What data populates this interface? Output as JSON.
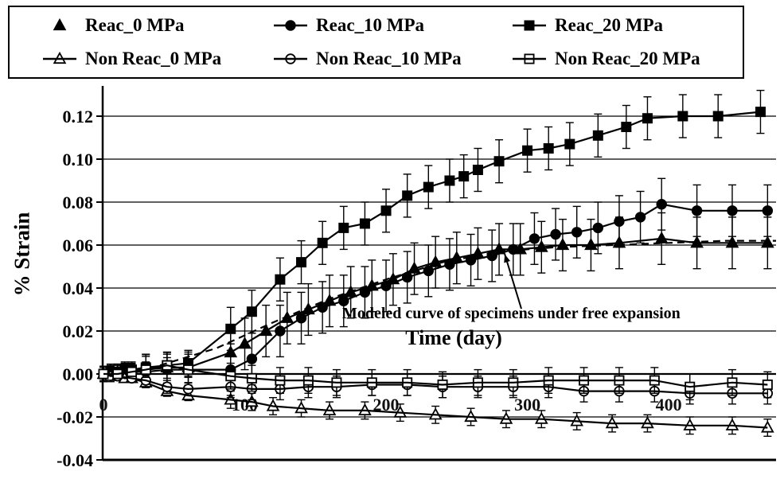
{
  "figure": {
    "ylabel": "% Strain",
    "xlabel": "Time (day)",
    "annotation_text": "Modeled curve of specimens under free expansion"
  },
  "chart_data": {
    "type": "line",
    "title": "",
    "xlabel": "Time (day)",
    "ylabel": "% Strain",
    "xlim": [
      0,
      476
    ],
    "ylim": [
      -0.04,
      0.13
    ],
    "x_ticks": [
      0,
      100,
      200,
      300,
      400
    ],
    "y_ticks": [
      -0.04,
      -0.02,
      0.0,
      0.02,
      0.04,
      0.06,
      0.08,
      0.1,
      0.12
    ],
    "grid": "horizontal",
    "legend_position": "top",
    "annotation": {
      "text": "Modeled curve of specimens under free expansion",
      "arrow_tip_day": 284,
      "arrow_tip_value": 0.058
    },
    "series": [
      {
        "name": "Reac_0 MPa",
        "marker": "triangle",
        "fill": "filled",
        "legend_line": false,
        "error_bar": 0.012,
        "points": [
          [
            0,
            0.0
          ],
          [
            5,
            0.001
          ],
          [
            10,
            0.001
          ],
          [
            15,
            0.002
          ],
          [
            20,
            0.002
          ],
          [
            30,
            0.002
          ],
          [
            45,
            0.003
          ],
          [
            60,
            0.003
          ],
          [
            90,
            0.01
          ],
          [
            100,
            0.014
          ],
          [
            115,
            0.02
          ],
          [
            130,
            0.026
          ],
          [
            145,
            0.03
          ],
          [
            160,
            0.034
          ],
          [
            175,
            0.038
          ],
          [
            190,
            0.041
          ],
          [
            205,
            0.044
          ],
          [
            220,
            0.049
          ],
          [
            235,
            0.052
          ],
          [
            250,
            0.054
          ],
          [
            265,
            0.056
          ],
          [
            280,
            0.058
          ],
          [
            295,
            0.058
          ],
          [
            310,
            0.059
          ],
          [
            325,
            0.06
          ],
          [
            345,
            0.06
          ],
          [
            365,
            0.061
          ],
          [
            395,
            0.063
          ],
          [
            420,
            0.061
          ],
          [
            445,
            0.061
          ],
          [
            470,
            0.061
          ]
        ]
      },
      {
        "name": "Reac_10 MPa",
        "marker": "circle",
        "fill": "filled",
        "legend_line": true,
        "error_bar": 0.012,
        "points": [
          [
            0,
            0.0
          ],
          [
            5,
            0.0
          ],
          [
            10,
            0.001
          ],
          [
            15,
            0.001
          ],
          [
            20,
            0.001
          ],
          [
            30,
            0.001
          ],
          [
            45,
            0.002
          ],
          [
            60,
            0.002
          ],
          [
            90,
            0.002
          ],
          [
            105,
            0.007
          ],
          [
            125,
            0.02
          ],
          [
            140,
            0.026
          ],
          [
            155,
            0.031
          ],
          [
            170,
            0.034
          ],
          [
            185,
            0.038
          ],
          [
            200,
            0.041
          ],
          [
            215,
            0.045
          ],
          [
            230,
            0.048
          ],
          [
            245,
            0.051
          ],
          [
            260,
            0.053
          ],
          [
            275,
            0.055
          ],
          [
            290,
            0.058
          ],
          [
            305,
            0.063
          ],
          [
            320,
            0.065
          ],
          [
            335,
            0.066
          ],
          [
            350,
            0.068
          ],
          [
            365,
            0.071
          ],
          [
            380,
            0.073
          ],
          [
            395,
            0.079
          ],
          [
            420,
            0.076
          ],
          [
            445,
            0.076
          ],
          [
            470,
            0.076
          ]
        ]
      },
      {
        "name": "Reac_20 MPa",
        "marker": "square",
        "fill": "filled",
        "legend_line": true,
        "error_bar": 0.01,
        "points": [
          [
            0,
            0.0
          ],
          [
            5,
            0.001
          ],
          [
            10,
            0.001
          ],
          [
            15,
            0.002
          ],
          [
            20,
            0.002
          ],
          [
            30,
            0.003
          ],
          [
            45,
            0.004
          ],
          [
            60,
            0.005
          ],
          [
            90,
            0.021
          ],
          [
            105,
            0.029
          ],
          [
            125,
            0.044
          ],
          [
            140,
            0.052
          ],
          [
            155,
            0.061
          ],
          [
            170,
            0.068
          ],
          [
            185,
            0.07
          ],
          [
            200,
            0.076
          ],
          [
            215,
            0.083
          ],
          [
            230,
            0.087
          ],
          [
            245,
            0.09
          ],
          [
            255,
            0.092
          ],
          [
            265,
            0.095
          ],
          [
            280,
            0.099
          ],
          [
            300,
            0.104
          ],
          [
            315,
            0.105
          ],
          [
            330,
            0.107
          ],
          [
            350,
            0.111
          ],
          [
            370,
            0.115
          ],
          [
            385,
            0.119
          ],
          [
            410,
            0.12
          ],
          [
            435,
            0.12
          ],
          [
            465,
            0.122
          ]
        ]
      },
      {
        "name": "Non Reac_0 MPa",
        "marker": "triangle",
        "fill": "open",
        "legend_line": true,
        "error_bar": 0.004,
        "points": [
          [
            0,
            0.0
          ],
          [
            5,
            -0.001
          ],
          [
            10,
            -0.001
          ],
          [
            15,
            -0.002
          ],
          [
            20,
            -0.002
          ],
          [
            30,
            -0.004
          ],
          [
            45,
            -0.008
          ],
          [
            60,
            -0.01
          ],
          [
            90,
            -0.012
          ],
          [
            105,
            -0.013
          ],
          [
            120,
            -0.015
          ],
          [
            140,
            -0.016
          ],
          [
            160,
            -0.017
          ],
          [
            185,
            -0.017
          ],
          [
            210,
            -0.018
          ],
          [
            235,
            -0.019
          ],
          [
            260,
            -0.02
          ],
          [
            285,
            -0.021
          ],
          [
            310,
            -0.021
          ],
          [
            335,
            -0.022
          ],
          [
            360,
            -0.023
          ],
          [
            385,
            -0.023
          ],
          [
            415,
            -0.024
          ],
          [
            445,
            -0.024
          ],
          [
            470,
            -0.025
          ]
        ]
      },
      {
        "name": "Non Reac_10 MPa",
        "marker": "circle",
        "fill": "open",
        "legend_line": true,
        "error_bar": 0.005,
        "points": [
          [
            0,
            0.0
          ],
          [
            10,
            -0.001
          ],
          [
            20,
            -0.002
          ],
          [
            30,
            -0.003
          ],
          [
            45,
            -0.006
          ],
          [
            60,
            -0.007
          ],
          [
            90,
            -0.006
          ],
          [
            105,
            -0.007
          ],
          [
            125,
            -0.007
          ],
          [
            145,
            -0.006
          ],
          [
            165,
            -0.006
          ],
          [
            190,
            -0.005
          ],
          [
            215,
            -0.005
          ],
          [
            240,
            -0.006
          ],
          [
            265,
            -0.006
          ],
          [
            290,
            -0.006
          ],
          [
            315,
            -0.006
          ],
          [
            340,
            -0.008
          ],
          [
            365,
            -0.008
          ],
          [
            390,
            -0.008
          ],
          [
            415,
            -0.009
          ],
          [
            445,
            -0.009
          ],
          [
            470,
            -0.009
          ]
        ]
      },
      {
        "name": "Non Reac_20 MPa",
        "marker": "square",
        "fill": "open",
        "legend_line": true,
        "error_bar": 0.006,
        "points": [
          [
            0,
            0.0
          ],
          [
            10,
            0.0
          ],
          [
            20,
            0.001
          ],
          [
            30,
            0.002
          ],
          [
            45,
            0.004
          ],
          [
            60,
            0.002
          ],
          [
            90,
            -0.001
          ],
          [
            105,
            -0.002
          ],
          [
            125,
            -0.003
          ],
          [
            145,
            -0.003
          ],
          [
            165,
            -0.004
          ],
          [
            190,
            -0.004
          ],
          [
            215,
            -0.004
          ],
          [
            240,
            -0.005
          ],
          [
            265,
            -0.004
          ],
          [
            290,
            -0.004
          ],
          [
            315,
            -0.003
          ],
          [
            340,
            -0.003
          ],
          [
            365,
            -0.003
          ],
          [
            390,
            -0.003
          ],
          [
            415,
            -0.006
          ],
          [
            445,
            -0.004
          ],
          [
            470,
            -0.005
          ]
        ]
      }
    ],
    "modeled_curve": {
      "name": "Modeled curve of specimens under free expansion",
      "line": "dashed",
      "points": [
        [
          40,
          0.004
        ],
        [
          80,
          0.012
        ],
        [
          120,
          0.024
        ],
        [
          160,
          0.035
        ],
        [
          200,
          0.044
        ],
        [
          240,
          0.052
        ],
        [
          280,
          0.057
        ],
        [
          320,
          0.059
        ],
        [
          360,
          0.06
        ],
        [
          400,
          0.061
        ],
        [
          440,
          0.062
        ],
        [
          476,
          0.062
        ]
      ]
    }
  }
}
